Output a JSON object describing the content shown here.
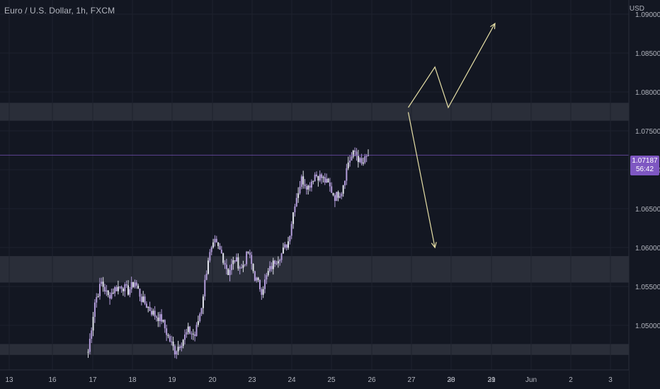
{
  "chart_data": {
    "type": "candlestick",
    "title": "Euro / U.S. Dollar, 1h, FXCM",
    "symbol": "Euro / U.S. Dollar",
    "interval": "1h",
    "source": "FXCM",
    "currency": "USD",
    "y_ticks": [
      "1.09000",
      "1.08500",
      "1.08000",
      "1.07500",
      "1.07000",
      "1.06500",
      "1.06000",
      "1.05500",
      "1.05000"
    ],
    "x_ticks": [
      "13",
      "16",
      "17",
      "18",
      "19",
      "20",
      "23",
      "24",
      "25",
      "26",
      "27",
      "28",
      "29",
      "30",
      "31",
      "Jun",
      "2",
      "3"
    ],
    "last_price": "1.07187",
    "countdown": "56:42",
    "ylim": [
      1.0462,
      1.091
    ],
    "zones": [
      {
        "from": 1.0763,
        "to": 1.0786
      },
      {
        "from": 1.0555,
        "to": 1.0589
      },
      {
        "from": 1.0462,
        "to": 1.0476
      }
    ],
    "price_path": [
      [
        "17 00:00",
        1.0466
      ],
      [
        "17 04:00",
        1.053
      ],
      [
        "17 08:00",
        1.0555
      ],
      [
        "17 12:00",
        1.0537
      ],
      [
        "17 16:00",
        1.0547
      ],
      [
        "17 20:00",
        1.0551
      ],
      [
        "18 00:00",
        1.0544
      ],
      [
        "18 04:00",
        1.0556
      ],
      [
        "18 08:00",
        1.0534
      ],
      [
        "18 12:00",
        1.0523
      ],
      [
        "18 16:00",
        1.0513
      ],
      [
        "18 20:00",
        1.0508
      ],
      [
        "19 00:00",
        1.0485
      ],
      [
        "19 04:00",
        1.0467
      ],
      [
        "19 08:00",
        1.0479
      ],
      [
        "19 12:00",
        1.0493
      ],
      [
        "19 16:00",
        1.0487
      ],
      [
        "19 20:00",
        1.0525
      ],
      [
        "20 00:00",
        1.0586
      ],
      [
        "20 04:00",
        1.0606
      ],
      [
        "20 08:00",
        1.0592
      ],
      [
        "20 12:00",
        1.0568
      ],
      [
        "20 16:00",
        1.0585
      ],
      [
        "20 20:00",
        1.0573
      ],
      [
        "21 00:00",
        1.0594
      ],
      [
        "21 04:00",
        1.0562
      ],
      [
        "21 08:00",
        1.0545
      ],
      [
        "21 12:00",
        1.0568
      ],
      [
        "21 16:00",
        1.0583
      ],
      [
        "21 20:00",
        1.0592
      ],
      [
        "22 00:00",
        1.0608
      ],
      [
        "22 04:00",
        1.0658
      ],
      [
        "22 08:00",
        1.0688
      ],
      [
        "22 12:00",
        1.0678
      ],
      [
        "22 16:00",
        1.0694
      ],
      [
        "22 20:00",
        1.069
      ],
      [
        "23 00:00",
        1.0681
      ],
      [
        "23 04:00",
        1.0665
      ],
      [
        "23 08:00",
        1.0673
      ],
      [
        "23 12:00",
        1.071
      ],
      [
        "23 16:00",
        1.0723
      ],
      [
        "23 20:00",
        1.0706
      ],
      [
        "24 00:00",
        1.07187
      ]
    ],
    "arrows": [
      {
        "style": "zigzag-up",
        "points": [
          [
            "25 00:00",
            1.078
          ],
          [
            "25 16:00",
            1.0832
          ],
          [
            "26 00:00",
            1.078
          ],
          [
            "27 04:00",
            1.0888
          ]
        ]
      },
      {
        "style": "down",
        "points": [
          [
            "25 00:00",
            1.0774
          ],
          [
            "25 16:00",
            1.06
          ]
        ]
      }
    ],
    "colors": {
      "background": "#131722",
      "grid": "#1e222d",
      "candle": "#b39ddb",
      "candle_light": "#e0e3eb",
      "zone": "#2a2e39",
      "arrow": "#e6dfa6",
      "price_tag": "#7e57c2",
      "price_line": "#7e57c2",
      "text": "#b2b5be"
    }
  }
}
